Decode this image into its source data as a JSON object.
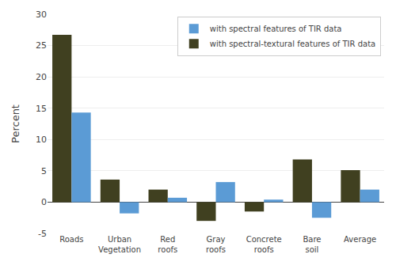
{
  "chart_data": {
    "type": "bar",
    "categories": [
      "Roads",
      "Urban\nVegetation",
      "Red\nroofs",
      "Gray\nroofs",
      "Concrete\nroofs",
      "Bare\nsoil",
      "Average"
    ],
    "series": [
      {
        "name": "with spectral-textural features of TIR data",
        "color": "#404020",
        "values": [
          26.7,
          3.6,
          2.0,
          -3.0,
          -1.5,
          6.8,
          5.1
        ]
      },
      {
        "name": "with spectral features of TIR data",
        "color": "#5b9bd5",
        "values": [
          14.3,
          -1.8,
          0.7,
          3.2,
          0.4,
          -2.5,
          2.0
        ]
      }
    ],
    "ylabel": "Percent",
    "ylim": [
      -5,
      30
    ],
    "yticks": [
      -5,
      0,
      5,
      10,
      15,
      20,
      25,
      30
    ],
    "grid": true,
    "legend": "upper right"
  }
}
